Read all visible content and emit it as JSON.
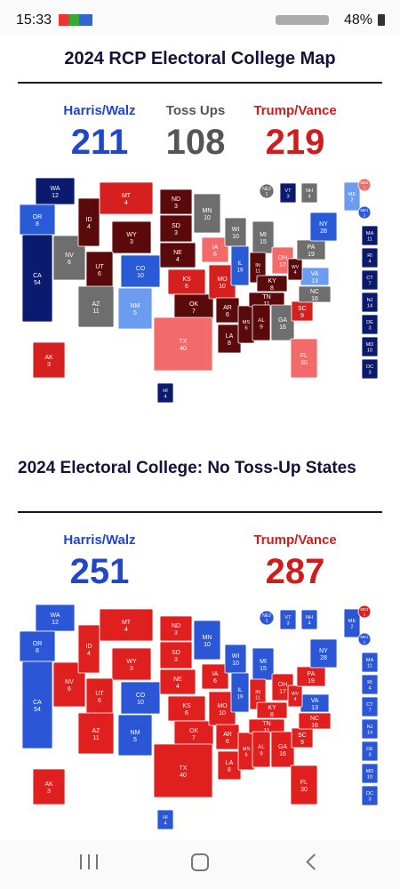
{
  "status_bar": {
    "time": "15:33",
    "battery": "48%"
  },
  "maps": [
    {
      "title": "2024 RCP Electoral College Map",
      "candidates": [
        {
          "name": "Harris/Walz",
          "total": 211,
          "color": "#2146c7"
        },
        {
          "name": "Toss Ups",
          "total": 108,
          "color": "#555555"
        },
        {
          "name": "Trump/Vance",
          "total": 219,
          "color": "#d01c1c"
        }
      ],
      "states": [
        {
          "abbr": "WA",
          "ev": 12,
          "color": "#0a1a6e"
        },
        {
          "abbr": "OR",
          "ev": 8,
          "color": "#2a5bd7"
        },
        {
          "abbr": "CA",
          "ev": 54,
          "color": "#0a1a6e"
        },
        {
          "abbr": "NV",
          "ev": 6,
          "color": "#6e6e6e"
        },
        {
          "abbr": "ID",
          "ev": 4,
          "color": "#5a0a0a"
        },
        {
          "abbr": "MT",
          "ev": 4,
          "color": "#d61f1f"
        },
        {
          "abbr": "WY",
          "ev": 3,
          "color": "#5a0a0a"
        },
        {
          "abbr": "UT",
          "ev": 6,
          "color": "#5a0a0a"
        },
        {
          "abbr": "AZ",
          "ev": 11,
          "color": "#6e6e6e"
        },
        {
          "abbr": "CO",
          "ev": 10,
          "color": "#2a5bd7"
        },
        {
          "abbr": "NM",
          "ev": 5,
          "color": "#6b9cf0"
        },
        {
          "abbr": "ND",
          "ev": 3,
          "color": "#5a0a0a"
        },
        {
          "abbr": "SD",
          "ev": 3,
          "color": "#5a0a0a"
        },
        {
          "abbr": "NE",
          "ev": 4,
          "color": "#5a0a0a"
        },
        {
          "abbr": "KS",
          "ev": 6,
          "color": "#d61f1f"
        },
        {
          "abbr": "OK",
          "ev": 7,
          "color": "#5a0a0a"
        },
        {
          "abbr": "TX",
          "ev": 40,
          "color": "#f26a6a"
        },
        {
          "abbr": "MN",
          "ev": 10,
          "color": "#6e6e6e"
        },
        {
          "abbr": "IA",
          "ev": 6,
          "color": "#f26a6a"
        },
        {
          "abbr": "MO",
          "ev": 10,
          "color": "#d61f1f"
        },
        {
          "abbr": "AR",
          "ev": 6,
          "color": "#5a0a0a"
        },
        {
          "abbr": "LA",
          "ev": 8,
          "color": "#5a0a0a"
        },
        {
          "abbr": "WI",
          "ev": 10,
          "color": "#6e6e6e"
        },
        {
          "abbr": "IL",
          "ev": 19,
          "color": "#2a5bd7"
        },
        {
          "abbr": "MS",
          "ev": 6,
          "color": "#5a0a0a"
        },
        {
          "abbr": "MI",
          "ev": 15,
          "color": "#6e6e6e"
        },
        {
          "abbr": "IN",
          "ev": 11,
          "color": "#5a0a0a"
        },
        {
          "abbr": "KY",
          "ev": 8,
          "color": "#5a0a0a"
        },
        {
          "abbr": "TN",
          "ev": 11,
          "color": "#5a0a0a"
        },
        {
          "abbr": "AL",
          "ev": 9,
          "color": "#5a0a0a"
        },
        {
          "abbr": "OH",
          "ev": 17,
          "color": "#f26a6a"
        },
        {
          "abbr": "GA",
          "ev": 16,
          "color": "#6e6e6e"
        },
        {
          "abbr": "FL",
          "ev": 30,
          "color": "#f26a6a"
        },
        {
          "abbr": "SC",
          "ev": 9,
          "color": "#d61f1f"
        },
        {
          "abbr": "NC",
          "ev": 16,
          "color": "#6e6e6e"
        },
        {
          "abbr": "VA",
          "ev": 13,
          "color": "#6b9cf0"
        },
        {
          "abbr": "WV",
          "ev": 4,
          "color": "#5a0a0a"
        },
        {
          "abbr": "PA",
          "ev": 19,
          "color": "#6e6e6e"
        },
        {
          "abbr": "NY",
          "ev": 28,
          "color": "#2a5bd7"
        },
        {
          "abbr": "ME",
          "ev": 2,
          "color": "#6b9cf0"
        },
        {
          "abbr": "NE2",
          "ev": 1,
          "color": "#6e6e6e"
        },
        {
          "abbr": "VT",
          "ev": 3,
          "color": "#0a1a6e"
        },
        {
          "abbr": "NH",
          "ev": 4,
          "color": "#6e6e6e"
        },
        {
          "abbr": "ME2",
          "ev": 1,
          "color": "#f26a6a"
        },
        {
          "abbr": "ME1",
          "ev": 1,
          "color": "#2a5bd7"
        },
        {
          "abbr": "MA",
          "ev": 11,
          "color": "#0a1a6e"
        },
        {
          "abbr": "RI",
          "ev": 4,
          "color": "#0a1a6e"
        },
        {
          "abbr": "CT",
          "ev": 7,
          "color": "#0a1a6e"
        },
        {
          "abbr": "NJ",
          "ev": 14,
          "color": "#0a1a6e"
        },
        {
          "abbr": "DE",
          "ev": 3,
          "color": "#0a1a6e"
        },
        {
          "abbr": "MD",
          "ev": 10,
          "color": "#0a1a6e"
        },
        {
          "abbr": "DC",
          "ev": 3,
          "color": "#0a1a6e"
        },
        {
          "abbr": "AK",
          "ev": 3,
          "color": "#d61f1f"
        },
        {
          "abbr": "HI",
          "ev": 4,
          "color": "#0a1a6e"
        }
      ]
    },
    {
      "title": "2024 Electoral College: No Toss-Up States",
      "candidates": [
        {
          "name": "Harris/Walz",
          "total": 251,
          "color": "#2146c7"
        },
        {
          "name": "Trump/Vance",
          "total": 287,
          "color": "#d01c1c"
        }
      ],
      "states": [
        {
          "abbr": "WA",
          "ev": 12,
          "color": "#2b56d6"
        },
        {
          "abbr": "OR",
          "ev": 8,
          "color": "#2b56d6"
        },
        {
          "abbr": "CA",
          "ev": 54,
          "color": "#2b56d6"
        },
        {
          "abbr": "NV",
          "ev": 6,
          "color": "#e01f1f"
        },
        {
          "abbr": "ID",
          "ev": 4,
          "color": "#e01f1f"
        },
        {
          "abbr": "MT",
          "ev": 4,
          "color": "#e01f1f"
        },
        {
          "abbr": "WY",
          "ev": 3,
          "color": "#e01f1f"
        },
        {
          "abbr": "UT",
          "ev": 6,
          "color": "#e01f1f"
        },
        {
          "abbr": "AZ",
          "ev": 11,
          "color": "#e01f1f"
        },
        {
          "abbr": "CO",
          "ev": 10,
          "color": "#2b56d6"
        },
        {
          "abbr": "NM",
          "ev": 5,
          "color": "#2b56d6"
        },
        {
          "abbr": "ND",
          "ev": 3,
          "color": "#e01f1f"
        },
        {
          "abbr": "SD",
          "ev": 3,
          "color": "#e01f1f"
        },
        {
          "abbr": "NE",
          "ev": 4,
          "color": "#e01f1f"
        },
        {
          "abbr": "KS",
          "ev": 6,
          "color": "#e01f1f"
        },
        {
          "abbr": "OK",
          "ev": 7,
          "color": "#e01f1f"
        },
        {
          "abbr": "TX",
          "ev": 40,
          "color": "#e01f1f"
        },
        {
          "abbr": "MN",
          "ev": 10,
          "color": "#2b56d6"
        },
        {
          "abbr": "IA",
          "ev": 6,
          "color": "#e01f1f"
        },
        {
          "abbr": "MO",
          "ev": 10,
          "color": "#e01f1f"
        },
        {
          "abbr": "AR",
          "ev": 6,
          "color": "#e01f1f"
        },
        {
          "abbr": "LA",
          "ev": 8,
          "color": "#e01f1f"
        },
        {
          "abbr": "WI",
          "ev": 10,
          "color": "#2b56d6"
        },
        {
          "abbr": "IL",
          "ev": 19,
          "color": "#2b56d6"
        },
        {
          "abbr": "MS",
          "ev": 6,
          "color": "#e01f1f"
        },
        {
          "abbr": "MI",
          "ev": 15,
          "color": "#2b56d6"
        },
        {
          "abbr": "IN",
          "ev": 11,
          "color": "#e01f1f"
        },
        {
          "abbr": "KY",
          "ev": 8,
          "color": "#e01f1f"
        },
        {
          "abbr": "TN",
          "ev": 11,
          "color": "#e01f1f"
        },
        {
          "abbr": "AL",
          "ev": 9,
          "color": "#e01f1f"
        },
        {
          "abbr": "OH",
          "ev": 17,
          "color": "#e01f1f"
        },
        {
          "abbr": "GA",
          "ev": 16,
          "color": "#e01f1f"
        },
        {
          "abbr": "FL",
          "ev": 30,
          "color": "#e01f1f"
        },
        {
          "abbr": "SC",
          "ev": 9,
          "color": "#e01f1f"
        },
        {
          "abbr": "NC",
          "ev": 16,
          "color": "#e01f1f"
        },
        {
          "abbr": "VA",
          "ev": 13,
          "color": "#2b56d6"
        },
        {
          "abbr": "WV",
          "ev": 4,
          "color": "#e01f1f"
        },
        {
          "abbr": "PA",
          "ev": 19,
          "color": "#e01f1f"
        },
        {
          "abbr": "NY",
          "ev": 28,
          "color": "#2b56d6"
        },
        {
          "abbr": "ME",
          "ev": 2,
          "color": "#2b56d6"
        },
        {
          "abbr": "NE2",
          "ev": 1,
          "color": "#2b56d6"
        },
        {
          "abbr": "VT",
          "ev": 3,
          "color": "#2b56d6"
        },
        {
          "abbr": "NH",
          "ev": 4,
          "color": "#2b56d6"
        },
        {
          "abbr": "ME2",
          "ev": 1,
          "color": "#e01f1f"
        },
        {
          "abbr": "ME1",
          "ev": 1,
          "color": "#2b56d6"
        },
        {
          "abbr": "MA",
          "ev": 11,
          "color": "#2b56d6"
        },
        {
          "abbr": "RI",
          "ev": 4,
          "color": "#2b56d6"
        },
        {
          "abbr": "CT",
          "ev": 7,
          "color": "#2b56d6"
        },
        {
          "abbr": "NJ",
          "ev": 14,
          "color": "#2b56d6"
        },
        {
          "abbr": "DE",
          "ev": 3,
          "color": "#2b56d6"
        },
        {
          "abbr": "MD",
          "ev": 10,
          "color": "#2b56d6"
        },
        {
          "abbr": "DC",
          "ev": 3,
          "color": "#2b56d6"
        },
        {
          "abbr": "AK",
          "ev": 3,
          "color": "#e01f1f"
        },
        {
          "abbr": "HI",
          "ev": 4,
          "color": "#2b56d6"
        }
      ]
    }
  ]
}
